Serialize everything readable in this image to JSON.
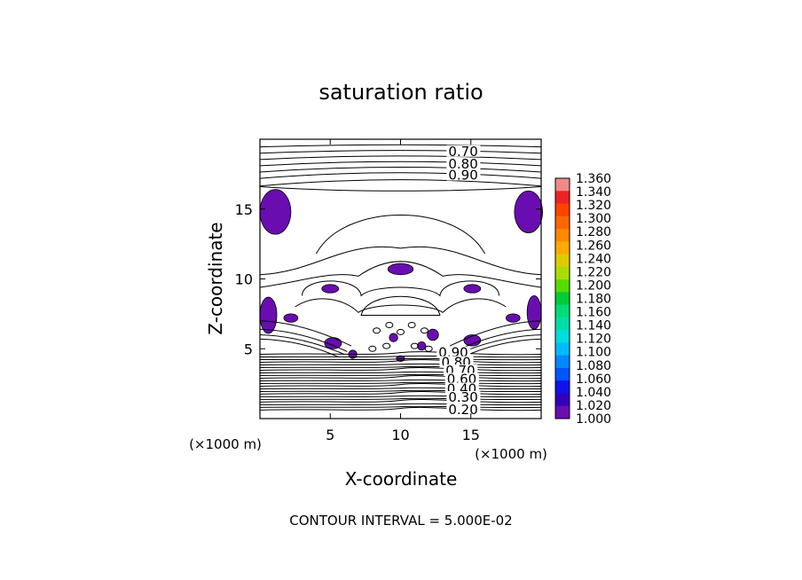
{
  "chart_data": {
    "type": "contour",
    "title": "saturation ratio",
    "xlabel": "X-coordinate",
    "ylabel": "Z-coordinate",
    "x_unit_label": "(×1000 m)",
    "y_unit_label": "(×1000 m)",
    "xlim": [
      0,
      20
    ],
    "ylim": [
      0,
      20
    ],
    "x_ticks": [
      5,
      10,
      15
    ],
    "y_ticks": [
      5,
      10,
      15
    ],
    "footer": "CONTOUR INTERVAL = 5.000E-02",
    "contour_interval": 0.05,
    "contour_labels": [
      {
        "text": "0.70",
        "x": 13.4,
        "y": 19.0
      },
      {
        "text": "0.80",
        "x": 13.4,
        "y": 18.1
      },
      {
        "text": "0.90",
        "x": 13.4,
        "y": 17.3
      },
      {
        "text": "0.90",
        "x": 12.7,
        "y": 4.6
      },
      {
        "text": "0.80",
        "x": 12.9,
        "y": 3.9
      },
      {
        "text": "0.70",
        "x": 13.2,
        "y": 3.3
      },
      {
        "text": "0.60",
        "x": 13.3,
        "y": 2.7
      },
      {
        "text": "0.40",
        "x": 13.3,
        "y": 2.0
      },
      {
        "text": "0.30",
        "x": 13.4,
        "y": 1.4
      },
      {
        "text": "0.20",
        "x": 13.4,
        "y": 0.5
      }
    ],
    "colorbar": {
      "min": 1.0,
      "max": 1.36,
      "ticks": [
        "1.360",
        "1.340",
        "1.320",
        "1.300",
        "1.280",
        "1.260",
        "1.240",
        "1.220",
        "1.200",
        "1.180",
        "1.160",
        "1.140",
        "1.120",
        "1.100",
        "1.080",
        "1.060",
        "1.040",
        "1.020",
        "1.000"
      ],
      "colors": [
        "#f08a8a",
        "#ee2222",
        "#ff4400",
        "#ff6600",
        "#ff8800",
        "#ffaa00",
        "#ddcc00",
        "#aadd00",
        "#55dd00",
        "#00cc33",
        "#00dd77",
        "#00ddaa",
        "#00dddd",
        "#00bbff",
        "#0088ff",
        "#0055ff",
        "#1111ee",
        "#3300bb",
        "#6a0db0"
      ]
    },
    "supersaturated_regions": [
      {
        "x": 1.1,
        "z": 14.8,
        "rx": 1.1,
        "rz": 1.6
      },
      {
        "x": 19.1,
        "z": 14.8,
        "rx": 1.0,
        "rz": 1.5
      },
      {
        "x": 10.0,
        "z": 10.7,
        "rx": 0.9,
        "rz": 0.4
      },
      {
        "x": 5.0,
        "z": 9.3,
        "rx": 0.6,
        "rz": 0.3
      },
      {
        "x": 15.1,
        "z": 9.3,
        "rx": 0.6,
        "rz": 0.3
      },
      {
        "x": 0.6,
        "z": 7.4,
        "rx": 0.6,
        "rz": 1.3
      },
      {
        "x": 19.5,
        "z": 7.6,
        "rx": 0.5,
        "rz": 1.2
      },
      {
        "x": 2.2,
        "z": 7.2,
        "rx": 0.5,
        "rz": 0.3
      },
      {
        "x": 18.0,
        "z": 7.2,
        "rx": 0.5,
        "rz": 0.3
      },
      {
        "x": 5.2,
        "z": 5.4,
        "rx": 0.6,
        "rz": 0.4
      },
      {
        "x": 15.1,
        "z": 5.6,
        "rx": 0.6,
        "rz": 0.4
      },
      {
        "x": 9.5,
        "z": 5.8,
        "rx": 0.3,
        "rz": 0.3
      },
      {
        "x": 12.3,
        "z": 6.0,
        "rx": 0.4,
        "rz": 0.4
      },
      {
        "x": 11.5,
        "z": 5.2,
        "rx": 0.3,
        "rz": 0.3
      },
      {
        "x": 6.6,
        "z": 4.6,
        "rx": 0.3,
        "rz": 0.3
      },
      {
        "x": 10.0,
        "z": 4.3,
        "rx": 0.3,
        "rz": 0.2
      }
    ]
  }
}
